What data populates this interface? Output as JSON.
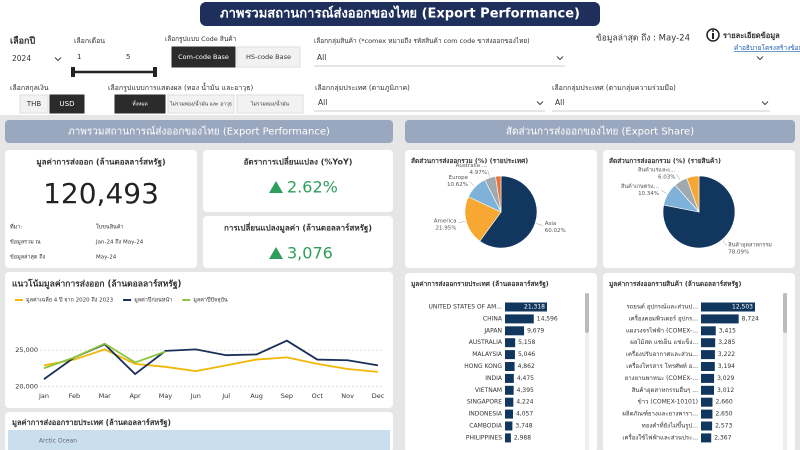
{
  "header": {
    "title": "ภาพรวมสถานการณ์ส่งออกของไทย (Export Performance)"
  },
  "filters": {
    "year": {
      "label": "เลือกปี",
      "value": "2024"
    },
    "month": {
      "label": "เลือกเดือน",
      "from": "1",
      "to": "5"
    },
    "code_type": {
      "label": "เลือกรูปแบบ Code สินค้า",
      "options": [
        "Com-code Base",
        "HS-code Base"
      ],
      "selected": 0
    },
    "product_group": {
      "label": "เลือกกลุ่มสินค้า (*comex หมายถึง รหัสสินค้า com code ขาส่งออกของไทย)",
      "value": "All"
    },
    "currency": {
      "label": "เลือกสกุลเงิน",
      "options": [
        "THB",
        "USD"
      ],
      "selected": 1
    },
    "display": {
      "label": "เลือกรูปแบบการแสดงผล (ทอง น้ำมัน และอาวุธ)",
      "options": [
        "ทั้งหมด",
        "ไม่รวมทอง/น้ำมัน และ อาวุธ",
        "ไม่รวมทอง/น้ำมัน"
      ],
      "selected": 0
    },
    "region": {
      "label": "เลือกกลุ่มประเทศ (ตามภูมิภาค)",
      "value": "All"
    },
    "cooperation": {
      "label": "เลือกกลุ่มประเทศ (ตามกลุ่มความร่วมมือ)",
      "value": "All"
    }
  },
  "latest": {
    "label": "ข้อมูลล่าสุด ถึง : May-24",
    "info": "รายละเอียดข้อมูล",
    "link": "คำอธิบายโครงสร้างข้อมูล"
  },
  "sections": [
    "ภาพรวมสถานการณ์ส่งออกของไทย (Export Performance)",
    "สัดส่วนการส่งออกของไทย (Export Share)"
  ],
  "cards": {
    "value": {
      "title": "มูลค่าการส่งออก (ล้านดอลลาร์สหรัฐ)",
      "value": "120,493",
      "rows": [
        [
          "ที่มา:",
          "ใบขนสินค้า"
        ],
        [
          "ข้อมูลรวม ณ",
          "Jan-24 ถึง May-24"
        ],
        [
          "ข้อมูลล่าสุด ถึง",
          "May-24"
        ]
      ]
    },
    "yoy": {
      "title": "อัตราการเปลี่ยนแปลง (%YoY)",
      "value": "2.62%",
      "color": "#2e9e5b"
    },
    "change": {
      "title": "การเปลี่ยนแปลงมูลค่า (ล้านดอลลาร์สหรัฐ)",
      "value": "3,076",
      "color": "#2e9e5b"
    }
  },
  "chart_data": [
    {
      "type": "line",
      "title": "แนวโน้มมูลค่าการส่งออก (ล้านดอลลาร์สหรัฐ)",
      "categories": [
        "Jan",
        "Feb",
        "Mar",
        "Apr",
        "May",
        "Jun",
        "Jul",
        "Aug",
        "Sep",
        "Oct",
        "Nov",
        "Dec"
      ],
      "series": [
        {
          "name": "มูลค่าเฉลี่ย 4 ปี จาก 2020 ถึง 2023",
          "color": "#f2b705",
          "values": [
            22900,
            23700,
            25100,
            23100,
            22700,
            22100,
            22900,
            23700,
            24000,
            23100,
            22400,
            22000
          ]
        },
        {
          "name": "มูลค่าปีก่อนหน้า",
          "color": "#1a2f5a",
          "values": [
            21000,
            24000,
            25800,
            21700,
            24900,
            25100,
            24300,
            24400,
            26300,
            23700,
            23600,
            22900
          ]
        },
        {
          "name": "มูลค่าปีปัจจุบัน",
          "color": "#8cc63f",
          "values": [
            22500,
            24000,
            25900,
            23300,
            24800,
            null,
            null,
            null,
            null,
            null,
            null,
            null
          ]
        }
      ],
      "ylim": [
        19500,
        27500
      ],
      "yticks": [
        {
          "value": 20000,
          "label": "20,000"
        },
        {
          "value": 25000,
          "label": "25,000"
        }
      ],
      "grid": true
    },
    {
      "type": "pie",
      "title": "สัดส่วนการส่งออกรวม (%) (รายประเทศ)",
      "categories": [
        "Asia",
        "America",
        "Europe",
        "Australia ...",
        null
      ],
      "values": [
        60.02,
        21.95,
        10.62,
        4.97,
        2.44
      ],
      "value_labels": [
        "60.02%",
        "21.95%",
        "10.62%",
        "4.97%",
        null
      ],
      "colors": [
        "#12375f",
        "#f6a833",
        "#7fb2d9",
        "#a0a8b0",
        "#e8743b"
      ]
    },
    {
      "type": "pie",
      "title": "สัดส่วนการส่งออกรวม (%) (รายสินค้า)",
      "categories": [
        "สินค้าอุตสาหกรรม",
        "สินค้าเกษตรแ...",
        "สินค้าแร่และเ...",
        null
      ],
      "values": [
        78.09,
        10.34,
        6.03,
        5.54
      ],
      "value_labels": [
        "78.09%",
        "10.34%",
        "6.03%",
        null
      ],
      "colors": [
        "#12375f",
        "#7fb2d9",
        "#a0a8b0",
        "#f6a833"
      ]
    },
    {
      "type": "bar",
      "title": "มูลค่าการส่งออกรายประเทศ (ล้านดอลลาร์สหรัฐ)",
      "categories": [
        "UNITED STATES OF AM...",
        "CHINA",
        "JAPAN",
        "AUSTRALIA",
        "MALAYSIA",
        "HONG KONG",
        "INDIA",
        "VIETNAM",
        "SINGAPORE",
        "INDONESIA",
        "CAMBODIA",
        "PHILIPPINES"
      ],
      "values": [
        21318,
        14596,
        9679,
        5158,
        5046,
        4862,
        4475,
        4395,
        4224,
        4057,
        3748,
        2988
      ],
      "value_labels": [
        "21,318",
        "14,596",
        "9,679",
        "5,158",
        "5,046",
        "4,862",
        "4,475",
        "4,395",
        "4,224",
        "4,057",
        "3,748",
        "2,988"
      ],
      "color": "#12375f"
    },
    {
      "type": "bar",
      "title": "มูลค่าการส่งออกรายสินค้า (ล้านดอลลาร์สหรัฐ)",
      "categories": [
        "รถยนต์ อุปกรณ์และส่วนป...",
        "เครื่องคอมพิวเตอร์ อุปกร...",
        "แผงวงจรไฟฟ้า (COMEX-...",
        "ผลไม้สด แช่เย็น แช่แข็ง...",
        "เครื่องปรับอากาศและส่วน...",
        "เครื่องโทรสาร โทรศัพท์ อ...",
        "ยางยานพาหนะ (COMEX-...",
        "สินค้าอุตสาหกรรมอื่นๆ ...",
        "ข้าว (COMEX-10101)",
        "ผลิตภัณฑ์ยางและยางพารา...",
        "ทองคำที่ยังไม่ขึ้นรูป...",
        "เครื่องใช้ไฟฟ้าและส่วนประ..."
      ],
      "values": [
        12503,
        8724,
        3415,
        3285,
        3222,
        3194,
        3029,
        3012,
        2660,
        2650,
        2573,
        2367
      ],
      "value_labels": [
        "12,503",
        "8,724",
        "3,415",
        "3,285",
        "3,222",
        "3,194",
        "3,029",
        "3,012",
        "2,660",
        "2,650",
        "2,573",
        "2,367"
      ],
      "color": "#12375f"
    }
  ],
  "map": {
    "title": "มูลค่าการส่งออกรายประเทศ (ล้านดอลลาร์สหรัฐ)",
    "label": "Arctic Ocean"
  }
}
